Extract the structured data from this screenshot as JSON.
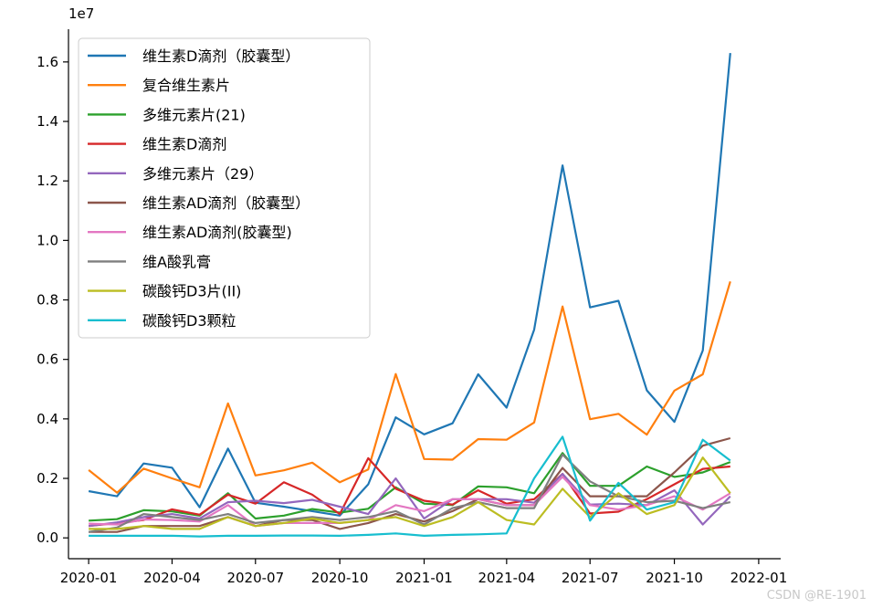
{
  "chart_data": {
    "type": "line",
    "title": "",
    "xlabel": "",
    "ylabel": "",
    "y_multiplier_label": "1e7",
    "x_tick_labels": [
      "2020-01",
      "2020-04",
      "2020-07",
      "2020-10",
      "2021-01",
      "2021-04",
      "2021-07",
      "2021-10",
      "2022-01"
    ],
    "x_ticks": [
      "2020-01-01",
      "2020-04-01",
      "2020-07-01",
      "2020-10-01",
      "2021-01-01",
      "2021-04-01",
      "2021-07-01",
      "2021-10-01",
      "2022-01-01"
    ],
    "x_range": [
      "2019-12-10",
      "2022-01-25"
    ],
    "y_tick_labels": [
      "0.0",
      "0.2",
      "0.4",
      "0.6",
      "0.8",
      "1.0",
      "1.2",
      "1.4",
      "1.6"
    ],
    "y_ticks": [
      0,
      0.2,
      0.4,
      0.6,
      0.8,
      1.0,
      1.2,
      1.4,
      1.6
    ],
    "ylim": [
      -0.07,
      1.71
    ],
    "grid": false,
    "legend_position": "upper-left",
    "x": [
      "2020-01",
      "2020-02",
      "2020-03",
      "2020-04",
      "2020-05",
      "2020-06",
      "2020-07",
      "2020-08",
      "2020-09",
      "2020-10",
      "2020-11",
      "2020-12",
      "2021-01",
      "2021-02",
      "2021-03",
      "2021-04",
      "2021-05",
      "2021-06",
      "2021-07",
      "2021-08",
      "2021-09",
      "2021-10",
      "2021-11",
      "2021-12"
    ],
    "series": [
      {
        "name": "维生素D滴剂（胶囊型）",
        "color": "#1f77b4",
        "values": [
          0.157,
          0.14,
          0.25,
          0.236,
          0.103,
          0.3,
          0.118,
          0.105,
          0.09,
          0.075,
          0.18,
          0.405,
          0.348,
          0.385,
          0.55,
          0.438,
          0.7,
          1.252,
          0.775,
          0.797,
          0.496,
          0.39,
          0.63,
          1.63
        ]
      },
      {
        "name": "复合维生素片",
        "color": "#ff7f0e",
        "values": [
          0.228,
          0.152,
          0.233,
          0.2,
          0.17,
          0.452,
          0.21,
          0.227,
          0.253,
          0.187,
          0.23,
          0.551,
          0.265,
          0.263,
          0.332,
          0.33,
          0.388,
          0.778,
          0.399,
          0.417,
          0.347,
          0.495,
          0.55,
          0.862
        ]
      },
      {
        "name": "多维元素片(21)",
        "color": "#2ca02c",
        "values": [
          0.058,
          0.063,
          0.093,
          0.089,
          0.075,
          0.15,
          0.065,
          0.075,
          0.097,
          0.085,
          0.098,
          0.17,
          0.115,
          0.11,
          0.173,
          0.17,
          0.15,
          0.285,
          0.175,
          0.175,
          0.24,
          0.205,
          0.22,
          0.255
        ]
      },
      {
        "name": "维生素D滴剂",
        "color": "#d62728",
        "values": [
          0.04,
          0.05,
          0.06,
          0.096,
          0.078,
          0.145,
          0.115,
          0.187,
          0.145,
          0.08,
          0.268,
          0.165,
          0.125,
          0.112,
          0.16,
          0.115,
          0.13,
          0.215,
          0.082,
          0.088,
          0.13,
          0.18,
          0.232,
          0.24
        ]
      },
      {
        "name": "多维元素片（29）",
        "color": "#9467bd",
        "values": [
          0.04,
          0.052,
          0.07,
          0.08,
          0.065,
          0.12,
          0.125,
          0.117,
          0.128,
          0.105,
          0.08,
          0.2,
          0.065,
          0.13,
          0.13,
          0.13,
          0.118,
          0.215,
          0.112,
          0.115,
          0.11,
          0.16,
          0.045,
          0.14
        ]
      },
      {
        "name": "维生素AD滴剂（胶囊型）",
        "color": "#8c564b",
        "values": [
          0.02,
          0.02,
          0.04,
          0.04,
          0.04,
          0.07,
          0.04,
          0.06,
          0.06,
          0.03,
          0.05,
          0.08,
          0.055,
          0.09,
          0.13,
          0.11,
          0.11,
          0.235,
          0.14,
          0.14,
          0.14,
          0.22,
          0.31,
          0.335
        ]
      },
      {
        "name": "维生素AD滴剂(胶囊型)",
        "color": "#e377c2",
        "values": [
          0.048,
          0.045,
          0.062,
          0.06,
          0.055,
          0.11,
          0.04,
          0.05,
          0.05,
          0.05,
          0.06,
          0.11,
          0.09,
          0.13,
          0.13,
          0.11,
          0.11,
          0.205,
          0.11,
          0.095,
          0.11,
          0.14,
          0.095,
          0.15
        ]
      },
      {
        "name": "维A酸乳膏",
        "color": "#7f7f7f",
        "values": [
          0.02,
          0.035,
          0.08,
          0.07,
          0.06,
          0.08,
          0.05,
          0.06,
          0.07,
          0.06,
          0.07,
          0.09,
          0.045,
          0.1,
          0.12,
          0.1,
          0.1,
          0.28,
          0.19,
          0.14,
          0.12,
          0.125,
          0.1,
          0.12
        ]
      },
      {
        "name": "碳酸钙D3片(II)",
        "color": "#bcbd22",
        "values": [
          0.03,
          0.03,
          0.04,
          0.03,
          0.03,
          0.07,
          0.04,
          0.05,
          0.065,
          0.05,
          0.06,
          0.07,
          0.04,
          0.07,
          0.12,
          0.06,
          0.045,
          0.165,
          0.07,
          0.15,
          0.08,
          0.11,
          0.27,
          0.15
        ]
      },
      {
        "name": "碳酸钙D3颗粒",
        "color": "#17becf",
        "values": [
          0.007,
          0.007,
          0.007,
          0.007,
          0.005,
          0.007,
          0.007,
          0.008,
          0.008,
          0.007,
          0.01,
          0.015,
          0.007,
          0.01,
          0.012,
          0.015,
          0.2,
          0.34,
          0.058,
          0.185,
          0.095,
          0.12,
          0.33,
          0.26
        ]
      }
    ]
  },
  "watermark": "CSDN @RE-1901"
}
